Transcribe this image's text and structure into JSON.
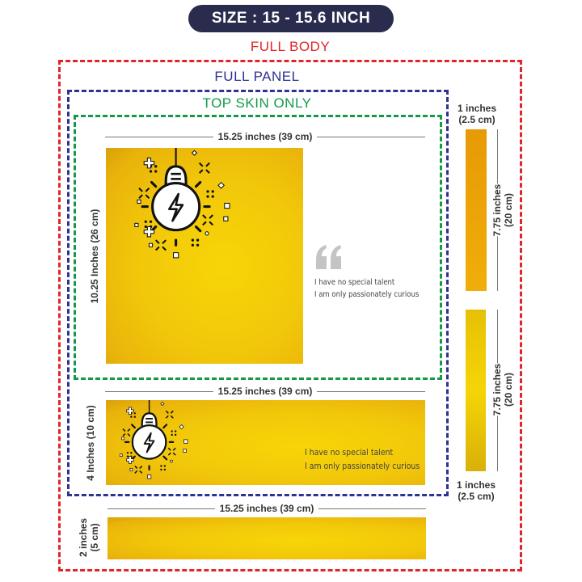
{
  "title": "SIZE : 15 - 15.6 INCH",
  "sections": {
    "full_body": "FULL BODY",
    "full_panel": "FULL PANEL",
    "top_skin": "TOP SKIN ONLY"
  },
  "colors": {
    "full_body": "#e0262b",
    "full_panel": "#2e3290",
    "top_skin": "#139a48",
    "pill": "#2a2c4e",
    "skin_yellow": "#f2c80a"
  },
  "top_skin": {
    "width_label": "15.25 inches (39 cm)",
    "height_label": "10.25 Inches (26 cm)",
    "quote_lines": [
      "I have no special talent",
      "I am only passionately curious"
    ],
    "icon": "lightbulb-bolt-icon"
  },
  "bottom_panel": {
    "width_label": "15.25 inches (39 cm)",
    "height_label": "4 Inches (10 cm)",
    "quote_lines": [
      "I have no special talent",
      "I am only passionately curious"
    ],
    "icon": "lightbulb-bolt-icon"
  },
  "front_strip": {
    "width_label": "15.25 inches (39 cm)",
    "height_label_1": "2 inches",
    "height_label_2": "(5 cm)"
  },
  "side_strips": {
    "top_width_1": "1 inches",
    "top_width_2": "(2.5 cm)",
    "length_1": "7.75 inches",
    "length_2": "(20 cm)",
    "bottom_width_1": "1 inches",
    "bottom_width_2": "(2.5 cm)"
  }
}
